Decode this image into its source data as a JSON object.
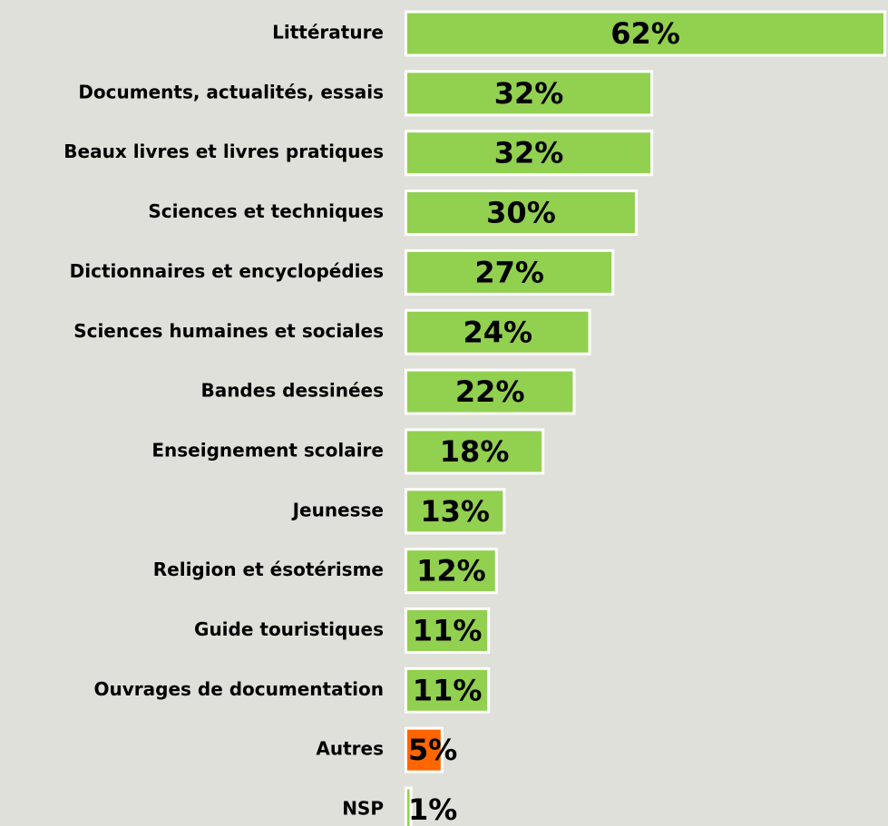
{
  "chart_data": {
    "type": "hbar",
    "categories": [
      "Littérature",
      "Documents, actualités, essais",
      "Beaux livres et livres pratiques",
      "Sciences et techniques",
      "Dictionnaires et encyclopédies",
      "Sciences humaines et sociales",
      "Bandes dessinées",
      "Enseignement scolaire",
      "Jeunesse",
      "Religion et ésotérisme",
      "Guide touristiques",
      "Ouvrages de documentation",
      "Autres",
      "NSP"
    ],
    "values": [
      62,
      32,
      32,
      30,
      27,
      24,
      22,
      18,
      13,
      12,
      11,
      11,
      5,
      1
    ],
    "value_labels": [
      "62%",
      "32%",
      "32%",
      "30%",
      "27%",
      "24%",
      "22%",
      "18%",
      "13%",
      "12%",
      "11%",
      "11%",
      "5%",
      "1%"
    ],
    "colors": [
      "#92d050",
      "#92d050",
      "#92d050",
      "#92d050",
      "#92d050",
      "#92d050",
      "#92d050",
      "#92d050",
      "#92d050",
      "#92d050",
      "#92d050",
      "#92d050",
      "#ff6600",
      "#92d050"
    ]
  }
}
